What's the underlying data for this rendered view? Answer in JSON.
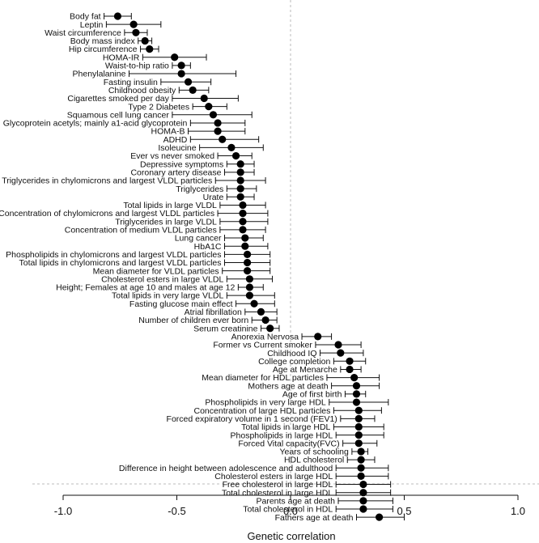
{
  "chart_data": {
    "type": "scatter",
    "xlabel": "Genetic correlation",
    "xlim": [
      -1.0,
      1.0
    ],
    "xticks": [
      -1.0,
      -0.5,
      0.0,
      0.5,
      1.0
    ],
    "xtick_labels": [
      "-1.0",
      "-0.5",
      "0.0",
      "0.5",
      "1.0"
    ],
    "reference_line_x": 0,
    "grid": false,
    "traits": [
      {
        "label": "Body fat",
        "value": -0.76,
        "lo": -0.82,
        "hi": -0.7
      },
      {
        "label": "Leptin",
        "value": -0.69,
        "lo": -0.81,
        "hi": -0.57
      },
      {
        "label": "Waist circumference",
        "value": -0.68,
        "lo": -0.73,
        "hi": -0.63
      },
      {
        "label": "Body mass index",
        "value": -0.64,
        "lo": -0.67,
        "hi": -0.61
      },
      {
        "label": "Hip circumference",
        "value": -0.62,
        "lo": -0.66,
        "hi": -0.58
      },
      {
        "label": "HOMA-IR",
        "value": -0.51,
        "lo": -0.65,
        "hi": -0.37
      },
      {
        "label": "Waist-to-hip ratio",
        "value": -0.48,
        "lo": -0.52,
        "hi": -0.44
      },
      {
        "label": "Phenylalanine",
        "value": -0.48,
        "lo": -0.71,
        "hi": -0.24
      },
      {
        "label": "Fasting insulin",
        "value": -0.45,
        "lo": -0.57,
        "hi": -0.35
      },
      {
        "label": "Childhood obesity",
        "value": -0.43,
        "lo": -0.49,
        "hi": -0.36
      },
      {
        "label": "Cigarettes smoked per day",
        "value": -0.38,
        "lo": -0.52,
        "hi": -0.23
      },
      {
        "label": "Type 2 Diabetes",
        "value": -0.36,
        "lo": -0.43,
        "hi": -0.28
      },
      {
        "label": "Squamous cell lung cancer",
        "value": -0.34,
        "lo": -0.52,
        "hi": -0.17
      },
      {
        "label": "Glycoprotein acetyls; mainly a1-acid glycoprotein",
        "value": -0.32,
        "lo": -0.44,
        "hi": -0.2
      },
      {
        "label": "HOMA-B",
        "value": -0.32,
        "lo": -0.45,
        "hi": -0.2
      },
      {
        "label": "ADHD",
        "value": -0.3,
        "lo": -0.44,
        "hi": -0.14
      },
      {
        "label": "Isoleucine",
        "value": -0.26,
        "lo": -0.4,
        "hi": -0.12
      },
      {
        "label": "Ever vs never smoked",
        "value": -0.24,
        "lo": -0.32,
        "hi": -0.17
      },
      {
        "label": "Depressive symptoms",
        "value": -0.22,
        "lo": -0.28,
        "hi": -0.16
      },
      {
        "label": "Coronary artery disease",
        "value": -0.22,
        "lo": -0.29,
        "hi": -0.16
      },
      {
        "label": "Triglycerides in chylomicrons and largest VLDL particles",
        "value": -0.22,
        "lo": -0.33,
        "hi": -0.11
      },
      {
        "label": "Triglycerides",
        "value": -0.22,
        "lo": -0.28,
        "hi": -0.15
      },
      {
        "label": "Urate",
        "value": -0.22,
        "lo": -0.28,
        "hi": -0.16
      },
      {
        "label": "Total lipids in large VLDL",
        "value": -0.21,
        "lo": -0.31,
        "hi": -0.11
      },
      {
        "label": "Concentration of chylomicrons and largest VLDL particles",
        "value": -0.21,
        "lo": -0.32,
        "hi": -0.1
      },
      {
        "label": "Triglycerides in large VLDL",
        "value": -0.21,
        "lo": -0.31,
        "hi": -0.1
      },
      {
        "label": "Concentration of medium VLDL particles",
        "value": -0.21,
        "lo": -0.31,
        "hi": -0.11
      },
      {
        "label": "Lung cancer",
        "value": -0.2,
        "lo": -0.29,
        "hi": -0.12
      },
      {
        "label": "HbA1C",
        "value": -0.2,
        "lo": -0.29,
        "hi": -0.1
      },
      {
        "label": "Phospholipids in chylomicrons and largest VLDL particles",
        "value": -0.19,
        "lo": -0.29,
        "hi": -0.09
      },
      {
        "label": "Total lipids in chylomicrons and largest VLDL particles",
        "value": -0.19,
        "lo": -0.29,
        "hi": -0.09
      },
      {
        "label": "Mean diameter for VLDL particles",
        "value": -0.19,
        "lo": -0.3,
        "hi": -0.09
      },
      {
        "label": "Cholesterol esters in large VLDL",
        "value": -0.18,
        "lo": -0.28,
        "hi": -0.08
      },
      {
        "label": "Height; Females at age 10 and males at age 12",
        "value": -0.18,
        "lo": -0.23,
        "hi": -0.12
      },
      {
        "label": "Total lipids in very large VLDL",
        "value": -0.18,
        "lo": -0.28,
        "hi": -0.07
      },
      {
        "label": "Fasting glucose main effect",
        "value": -0.16,
        "lo": -0.24,
        "hi": -0.07
      },
      {
        "label": "Atrial fibrillation",
        "value": -0.13,
        "lo": -0.2,
        "hi": -0.06
      },
      {
        "label": "Number of children ever born",
        "value": -0.11,
        "lo": -0.17,
        "hi": -0.06
      },
      {
        "label": "Serum creatinine",
        "value": -0.09,
        "lo": -0.13,
        "hi": -0.05
      },
      {
        "label": "Anorexia Nervosa",
        "value": 0.12,
        "lo": 0.05,
        "hi": 0.18
      },
      {
        "label": "Former vs Current smoker",
        "value": 0.21,
        "lo": 0.11,
        "hi": 0.31
      },
      {
        "label": "Childhood IQ",
        "value": 0.22,
        "lo": 0.13,
        "hi": 0.32
      },
      {
        "label": "College completion",
        "value": 0.26,
        "lo": 0.19,
        "hi": 0.33
      },
      {
        "label": "Age at Menarche",
        "value": 0.26,
        "lo": 0.22,
        "hi": 0.31
      },
      {
        "label": "Mean diameter for HDL particles",
        "value": 0.28,
        "lo": 0.16,
        "hi": 0.39
      },
      {
        "label": "Mothers age at death",
        "value": 0.29,
        "lo": 0.18,
        "hi": 0.39
      },
      {
        "label": "Age of first birth",
        "value": 0.29,
        "lo": 0.24,
        "hi": 0.33
      },
      {
        "label": "Phospholipids in very large HDL",
        "value": 0.29,
        "lo": 0.17,
        "hi": 0.43
      },
      {
        "label": "Concentration of large HDL particles",
        "value": 0.3,
        "lo": 0.19,
        "hi": 0.4
      },
      {
        "label": "Forced expiratory volume in 1 second (FEV1)",
        "value": 0.3,
        "lo": 0.22,
        "hi": 0.37
      },
      {
        "label": "Total lipids in large HDL",
        "value": 0.3,
        "lo": 0.19,
        "hi": 0.41
      },
      {
        "label": "Phospholipids in large HDL",
        "value": 0.3,
        "lo": 0.2,
        "hi": 0.41
      },
      {
        "label": "Forced Vital capacity(FVC)",
        "value": 0.3,
        "lo": 0.23,
        "hi": 0.38
      },
      {
        "label": "Years of schooling",
        "value": 0.31,
        "lo": 0.27,
        "hi": 0.34
      },
      {
        "label": "HDL cholesterol",
        "value": 0.31,
        "lo": 0.25,
        "hi": 0.37
      },
      {
        "label": "Difference in height between adolescence and adulthood",
        "value": 0.31,
        "lo": 0.2,
        "hi": 0.43
      },
      {
        "label": "Cholesterol esters in large HDL",
        "value": 0.31,
        "lo": 0.2,
        "hi": 0.43
      },
      {
        "label": "Free cholesterol in large HDL",
        "value": 0.32,
        "lo": 0.2,
        "hi": 0.44
      },
      {
        "label": "Total cholesterol in large HDL",
        "value": 0.32,
        "lo": 0.2,
        "hi": 0.44
      },
      {
        "label": "Parents age at death",
        "value": 0.32,
        "lo": 0.21,
        "hi": 0.45
      },
      {
        "label": "Total cholesterol in HDL",
        "value": 0.32,
        "lo": 0.2,
        "hi": 0.45
      },
      {
        "label": "Fathers age at death",
        "value": 0.39,
        "lo": 0.29,
        "hi": 0.5
      }
    ]
  }
}
